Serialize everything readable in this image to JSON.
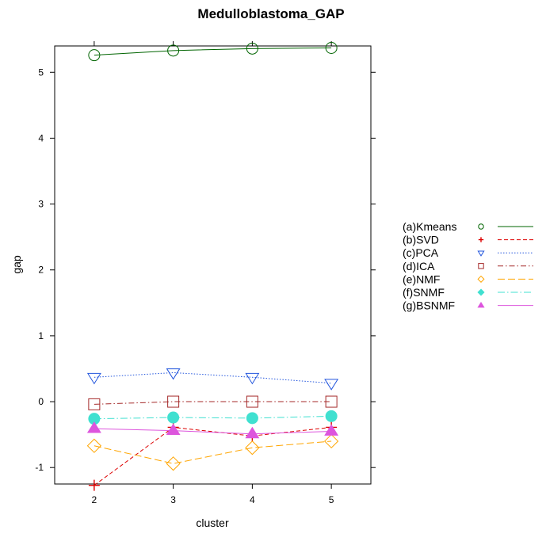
{
  "chart_data": {
    "type": "line",
    "title": "Medulloblastoma_GAP",
    "xlabel": "cluster",
    "ylabel": "gap",
    "x": [
      2,
      3,
      4,
      5
    ],
    "xlim": [
      1.5,
      5.5
    ],
    "ylim": [
      -1.25,
      5.4
    ],
    "x_ticks": [
      2,
      3,
      4,
      5
    ],
    "y_ticks": [
      -1,
      0,
      1,
      2,
      3,
      4,
      5
    ],
    "grid": false,
    "legend_position": "right",
    "series": [
      {
        "name": "(a)Kmeans",
        "values": [
          5.26,
          5.33,
          5.36,
          5.37
        ],
        "color": "#006400",
        "dash": "",
        "marker": "circle-open",
        "legend_marker": "circle-open"
      },
      {
        "name": "(b)SVD",
        "values": [
          -1.27,
          -0.39,
          -0.52,
          -0.39
        ],
        "color": "#dd0000",
        "dash": "5,3",
        "marker": "plus",
        "legend_marker": "plus"
      },
      {
        "name": "(c)PCA",
        "values": [
          0.37,
          0.44,
          0.37,
          0.28
        ],
        "color": "#2255dd",
        "dash": "1.5,2",
        "marker": "triangle-down-open",
        "legend_marker": "triangle-down-open"
      },
      {
        "name": "(d)ICA",
        "values": [
          -0.04,
          0.0,
          0.0,
          0.0
        ],
        "color": "#a52a2a",
        "dash": "7,3,1.5,3",
        "marker": "square-open",
        "legend_marker": "square-open"
      },
      {
        "name": "(e)NMF",
        "values": [
          -0.67,
          -0.94,
          -0.7,
          -0.6
        ],
        "color": "#ffa500",
        "dash": "9,4",
        "marker": "diamond-open",
        "legend_marker": "diamond-open"
      },
      {
        "name": "(f)SNMF",
        "values": [
          -0.26,
          -0.24,
          -0.25,
          -0.22
        ],
        "color": "#40e0d0",
        "dash": "9,3,1.5,3",
        "marker": "circle-filled",
        "legend_marker": "diamond-filled"
      },
      {
        "name": "(g)BSNMF",
        "values": [
          -0.41,
          -0.44,
          -0.49,
          -0.45
        ],
        "color": "#dd55dd",
        "dash": "",
        "marker": "triangle-up-filled",
        "legend_marker": "triangle-up-filled"
      }
    ]
  }
}
